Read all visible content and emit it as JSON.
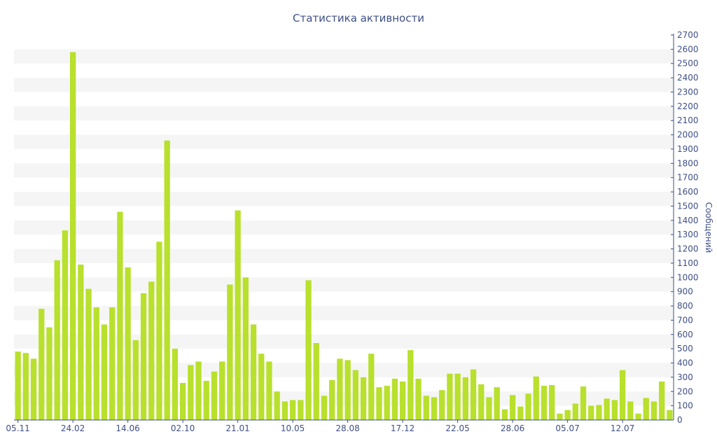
{
  "chart_data": {
    "type": "bar",
    "title": "Статистика активности",
    "ylabel": "Сообщений",
    "xlabel": "",
    "ylim": [
      0,
      2700
    ],
    "y_ticks": [
      0,
      100,
      200,
      300,
      400,
      500,
      600,
      700,
      800,
      900,
      1000,
      1100,
      1200,
      1300,
      1400,
      1500,
      1600,
      1700,
      1800,
      1900,
      2000,
      2100,
      2200,
      2300,
      2400,
      2500,
      2600,
      2700
    ],
    "y_axis_position": "right",
    "grid": "alternating horizontal bands",
    "bar_color": "#b8e02c",
    "x_tick_labels": [
      {
        "label": "05.11",
        "index": 0
      },
      {
        "label": "24.02",
        "index": 7
      },
      {
        "label": "14.06",
        "index": 14
      },
      {
        "label": "02.10",
        "index": 21
      },
      {
        "label": "21.01",
        "index": 28
      },
      {
        "label": "10.05",
        "index": 35
      },
      {
        "label": "28.08",
        "index": 42
      },
      {
        "label": "17.12",
        "index": 49
      },
      {
        "label": "22.05",
        "index": 56
      },
      {
        "label": "28.06",
        "index": 63
      },
      {
        "label": "05.07",
        "index": 70
      },
      {
        "label": "12.07",
        "index": 77
      }
    ],
    "values": [
      480,
      470,
      430,
      780,
      650,
      1120,
      1330,
      2580,
      1090,
      920,
      790,
      670,
      790,
      1460,
      1070,
      560,
      890,
      970,
      1250,
      1960,
      500,
      260,
      385,
      410,
      275,
      340,
      410,
      950,
      1470,
      1000,
      670,
      465,
      410,
      200,
      130,
      140,
      140,
      980,
      540,
      170,
      280,
      430,
      420,
      350,
      300,
      465,
      230,
      240,
      290,
      270,
      490,
      290,
      170,
      160,
      210,
      325,
      325,
      300,
      355,
      250,
      160,
      230,
      75,
      175,
      95,
      185,
      305,
      240,
      245,
      45,
      70,
      115,
      235,
      100,
      105,
      150,
      140,
      350,
      130,
      45,
      155,
      130,
      270,
      70
    ]
  }
}
